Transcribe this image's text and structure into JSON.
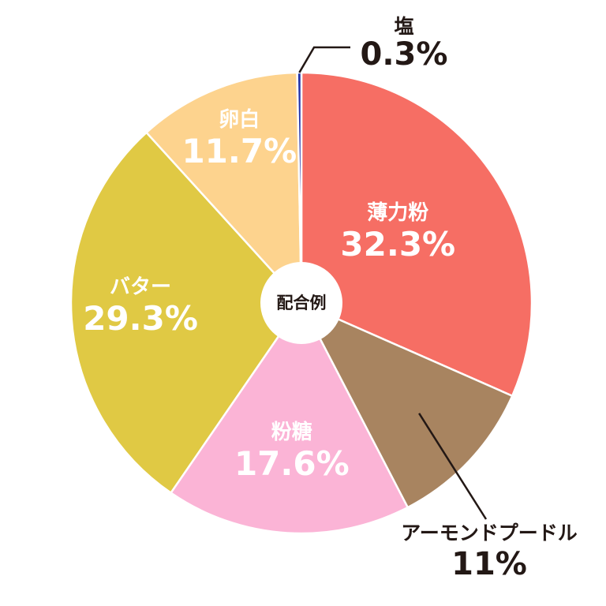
{
  "chart_data": {
    "type": "pie",
    "title": "",
    "center_label": "配合例",
    "slices": [
      {
        "label": "薄力粉",
        "value": 32.3,
        "value_label": "32.3%",
        "color": "#F66E64"
      },
      {
        "label": "アーモンドプードル",
        "value": 11,
        "value_label": "11%",
        "color": "#A88460"
      },
      {
        "label": "粉糖",
        "value": 17.6,
        "value_label": "17.6%",
        "color": "#FBB4D6"
      },
      {
        "label": "バター",
        "value": 29.3,
        "value_label": "29.3%",
        "color": "#E0C944"
      },
      {
        "label": "卵白",
        "value": 11.7,
        "value_label": "11.7%",
        "color": "#FDD38E"
      },
      {
        "label": "塩",
        "value": 0.3,
        "value_label": "0.3%",
        "color": "#2233A8"
      }
    ]
  }
}
